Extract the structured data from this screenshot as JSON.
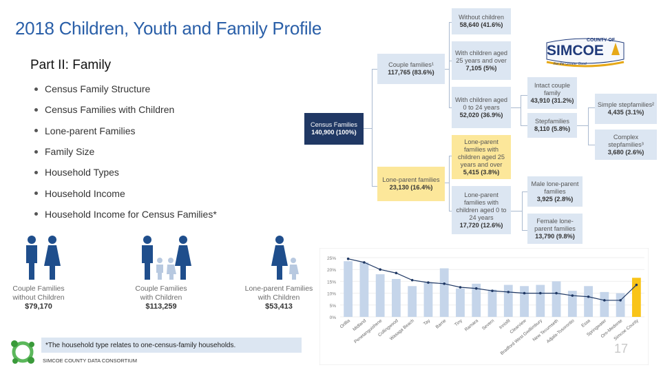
{
  "header": {
    "title": "2018 Children, Youth and Family Profile",
    "subtitle": "Part II: Family"
  },
  "topics": [
    "Census Family Structure",
    "Census Families with Children",
    "Lone-parent Families",
    "Family Size",
    "Household Types",
    "Household Income",
    "Household Income for Census Families*"
  ],
  "tree": {
    "census": {
      "label": "Census Families",
      "value": "140,900 (100%)"
    },
    "couple": {
      "label": "Couple families¹",
      "value": "117,765 (83.6%)"
    },
    "lone": {
      "label": "Lone-parent families",
      "value": "23,130 (16.4%)"
    },
    "without_children": {
      "label": "Without children",
      "value": "58,640 (41.6%)"
    },
    "children_25": {
      "label": "With children aged 25 years and over",
      "value": "7,105 (5%)"
    },
    "children_0_24": {
      "label": "With children aged 0 to 24 years",
      "value": "52,020 (36.9%)"
    },
    "intact": {
      "label": "Intact couple family",
      "value": "43,910 (31.2%)"
    },
    "step": {
      "label": "Stepfamilies",
      "value": "8,110 (5.8%)"
    },
    "simple_step": {
      "label": "Simple stepfamilies²",
      "value": "4,435 (3.1%)"
    },
    "complex_step": {
      "label": "Complex stepfamilies³",
      "value": "3,680 (2.6%)"
    },
    "lone_25": {
      "label": "Lone-parent families with children aged 25 years and over",
      "value": "5,415 (3.8%)"
    },
    "lone_0_24": {
      "label": "Lone-parent families with children aged 0 to 24 years",
      "value": "17,720 (12.6%)"
    },
    "male_lone": {
      "label": "Male lone-parent families",
      "value": "3,925  (2.8%)"
    },
    "female_lone": {
      "label": "Female lone-parent families",
      "value": "13,790 (9.8%)"
    }
  },
  "logo": {
    "county_of": "COUNTY OF",
    "name": "SIMCOE",
    "tagline": "For the Greater Good"
  },
  "income": [
    {
      "label": "Couple Families without Children",
      "amount": "$79,170"
    },
    {
      "label": "Couple Families with Children",
      "amount": "$113,259"
    },
    {
      "label": "Lone-parent Families with Children",
      "amount": "$53,413"
    }
  ],
  "footnote": "*The household type relates to one-census-family households.",
  "footer": {
    "consortium": "SIMCOE COUNTY DATA CONSORTIUM",
    "page_number": "17"
  },
  "colors": {
    "bar": "#c5d5ea",
    "highlight_bar": "#f9c418",
    "line": "#1f3864",
    "title": "#2a5fa8"
  },
  "chart_data": {
    "type": "bar",
    "title": "",
    "xlabel": "",
    "ylabel": "",
    "ylim": [
      0,
      25
    ],
    "yticks": [
      "0%",
      "5%",
      "10%",
      "15%",
      "20%",
      "25%"
    ],
    "categories": [
      "Orillia",
      "Midland",
      "Penetanguishene",
      "Collingwood",
      "Wasaga Beach",
      "Tay",
      "Barrie",
      "Tiny",
      "Ramara",
      "Severn",
      "Innisfil",
      "Clearview",
      "Bradford West Gwillimbury",
      "New Tecumseth",
      "Adjala-Tosorontio",
      "Essa",
      "Springwater",
      "Oro-Medonte",
      "Simcoe County"
    ],
    "series": [
      {
        "name": "Bars",
        "values": [
          23.5,
          23,
          18,
          16,
          13,
          14.5,
          20.5,
          12,
          14,
          11.5,
          13.5,
          13,
          13.5,
          15,
          11,
          13,
          10.5,
          10,
          16.5
        ]
      },
      {
        "name": "Line",
        "values": [
          24.5,
          23,
          20,
          18.5,
          15.5,
          14.5,
          14,
          12.5,
          12,
          11,
          10.5,
          10,
          10,
          10,
          9,
          8.5,
          7,
          7,
          13.5
        ]
      }
    ],
    "highlight_category": "Simcoe County"
  }
}
